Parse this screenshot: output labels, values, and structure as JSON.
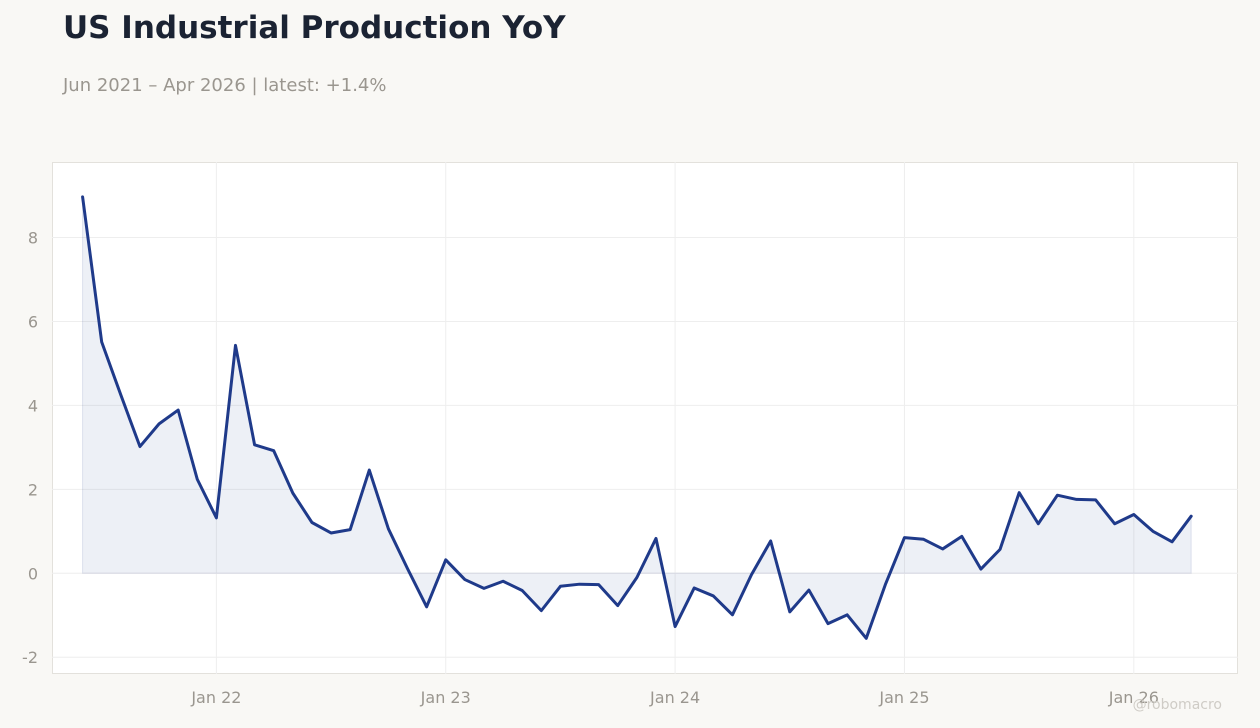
{
  "title": "US Industrial Production YoY",
  "subtitle": "Jun 2021 – Apr 2026 | latest: +1.4%",
  "watermark": "@robomacro",
  "colors": {
    "line": "#1f3a8a",
    "fill": "#1f3a8a",
    "grid": "#eeeeee",
    "tick_text": "#9a968f"
  },
  "chart_data": {
    "type": "line",
    "title": "US Industrial Production YoY",
    "subtitle": "Jun 2021 – Apr 2026 | latest: +1.4%",
    "xlabel": "",
    "ylabel": "",
    "x_tick_labels": [
      "Jan 22",
      "Jan 23",
      "Jan 24",
      "Jan 25",
      "Jan 26"
    ],
    "y_tick_labels": [
      "-2",
      "0",
      "2",
      "4",
      "6",
      "8"
    ],
    "ylim": [
      -2.4,
      9.8
    ],
    "xlim": [
      "2021-04",
      "2026-07"
    ],
    "grid": true,
    "area_fill_to_zero": true,
    "series": [
      {
        "x": [
          "2021-06",
          "2021-07",
          "2021-08",
          "2021-09",
          "2021-10",
          "2021-11",
          "2021-12",
          "2022-01",
          "2022-02",
          "2022-03",
          "2022-04",
          "2022-05",
          "2022-06",
          "2022-07",
          "2022-08",
          "2022-09",
          "2022-10",
          "2022-11",
          "2022-12",
          "2023-01",
          "2023-02",
          "2023-03",
          "2023-04",
          "2023-05",
          "2023-06",
          "2023-07",
          "2023-08",
          "2023-09",
          "2023-10",
          "2023-11",
          "2023-12",
          "2024-01",
          "2024-02",
          "2024-03",
          "2024-04",
          "2024-05",
          "2024-06",
          "2024-07",
          "2024-08",
          "2024-09",
          "2024-10",
          "2024-11",
          "2024-12",
          "2025-01",
          "2025-02",
          "2025-03",
          "2025-04",
          "2025-05",
          "2025-06",
          "2025-07",
          "2025-08",
          "2025-09",
          "2025-10",
          "2025-11",
          "2025-12",
          "2026-01",
          "2026-02",
          "2026-03",
          "2026-04"
        ],
        "values": [
          8.97,
          5.51,
          4.25,
          3.02,
          3.56,
          3.89,
          2.24,
          1.32,
          5.43,
          3.06,
          2.92,
          1.91,
          1.21,
          0.96,
          1.04,
          2.46,
          1.06,
          0.11,
          -0.8,
          0.32,
          -0.15,
          -0.36,
          -0.19,
          -0.41,
          -0.89,
          -0.31,
          -0.26,
          -0.27,
          -0.77,
          -0.1,
          0.83,
          -1.27,
          -0.35,
          -0.54,
          -0.99,
          -0.03,
          0.77,
          -0.92,
          -0.4,
          -1.2,
          -0.99,
          -1.55,
          -0.27,
          0.85,
          0.81,
          0.58,
          0.88,
          0.1,
          0.57,
          1.92,
          1.18,
          1.86,
          1.76,
          1.75,
          1.18,
          1.4,
          1.0,
          0.75,
          1.36
        ]
      }
    ]
  }
}
